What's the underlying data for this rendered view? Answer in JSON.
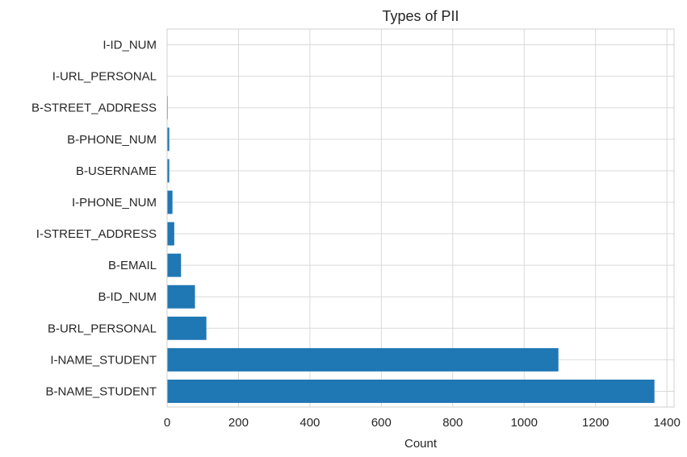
{
  "chart_data": {
    "type": "bar",
    "orientation": "horizontal",
    "title": "Types of PII",
    "xlabel": "Count",
    "ylabel": "",
    "xlim": [
      0,
      1420
    ],
    "xticks": [
      0,
      200,
      400,
      600,
      800,
      1000,
      1200,
      1400
    ],
    "grid": true,
    "categories": [
      "B-NAME_STUDENT",
      "I-NAME_STUDENT",
      "B-URL_PERSONAL",
      "B-ID_NUM",
      "B-EMAIL",
      "I-STREET_ADDRESS",
      "I-PHONE_NUM",
      "B-USERNAME",
      "B-PHONE_NUM",
      "B-STREET_ADDRESS",
      "I-URL_PERSONAL",
      "I-ID_NUM"
    ],
    "values": [
      1365,
      1096,
      110,
      78,
      39,
      20,
      15,
      6,
      6,
      2,
      1,
      1
    ],
    "bar_color": "#1f77b4"
  }
}
